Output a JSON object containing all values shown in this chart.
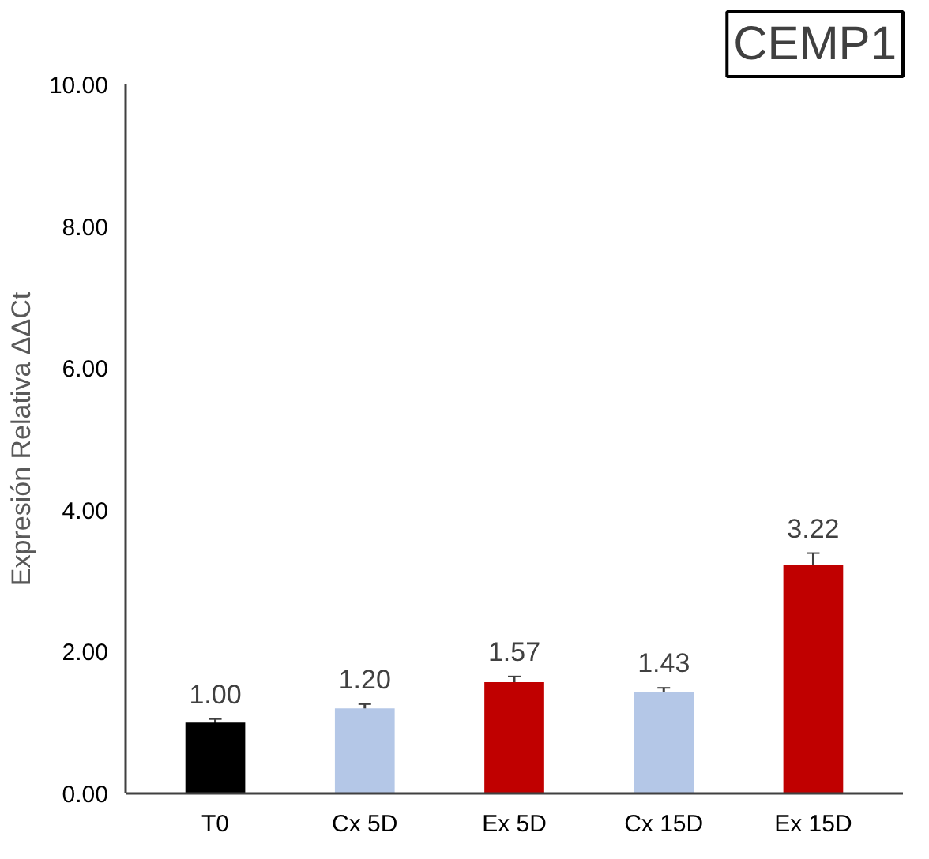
{
  "chart_data": {
    "type": "bar",
    "title": "CEMP1",
    "ylabel": "Expresión Relativa ΔΔCt",
    "categories": [
      "T0",
      "Cx 5D",
      "Ex 5D",
      "Cx 15D",
      "Ex 15D"
    ],
    "values": [
      1.0,
      1.2,
      1.57,
      1.43,
      3.22
    ],
    "colors": [
      "#000000",
      "#b4c7e7",
      "#c00000",
      "#b4c7e7",
      "#c00000"
    ],
    "errors": [
      0.05,
      0.06,
      0.08,
      0.06,
      0.17
    ],
    "value_labels": [
      "1.00",
      "1.20",
      "1.57",
      "1.43",
      "3.22"
    ],
    "ylim": [
      0,
      10
    ],
    "yticks": [
      {
        "value": 0,
        "label": "0.00"
      },
      {
        "value": 2,
        "label": "2.00"
      },
      {
        "value": 4,
        "label": "4.00"
      },
      {
        "value": 6,
        "label": "6.00"
      },
      {
        "value": 8,
        "label": "8.00"
      },
      {
        "value": 10,
        "label": "10.00"
      }
    ],
    "grid": false
  }
}
